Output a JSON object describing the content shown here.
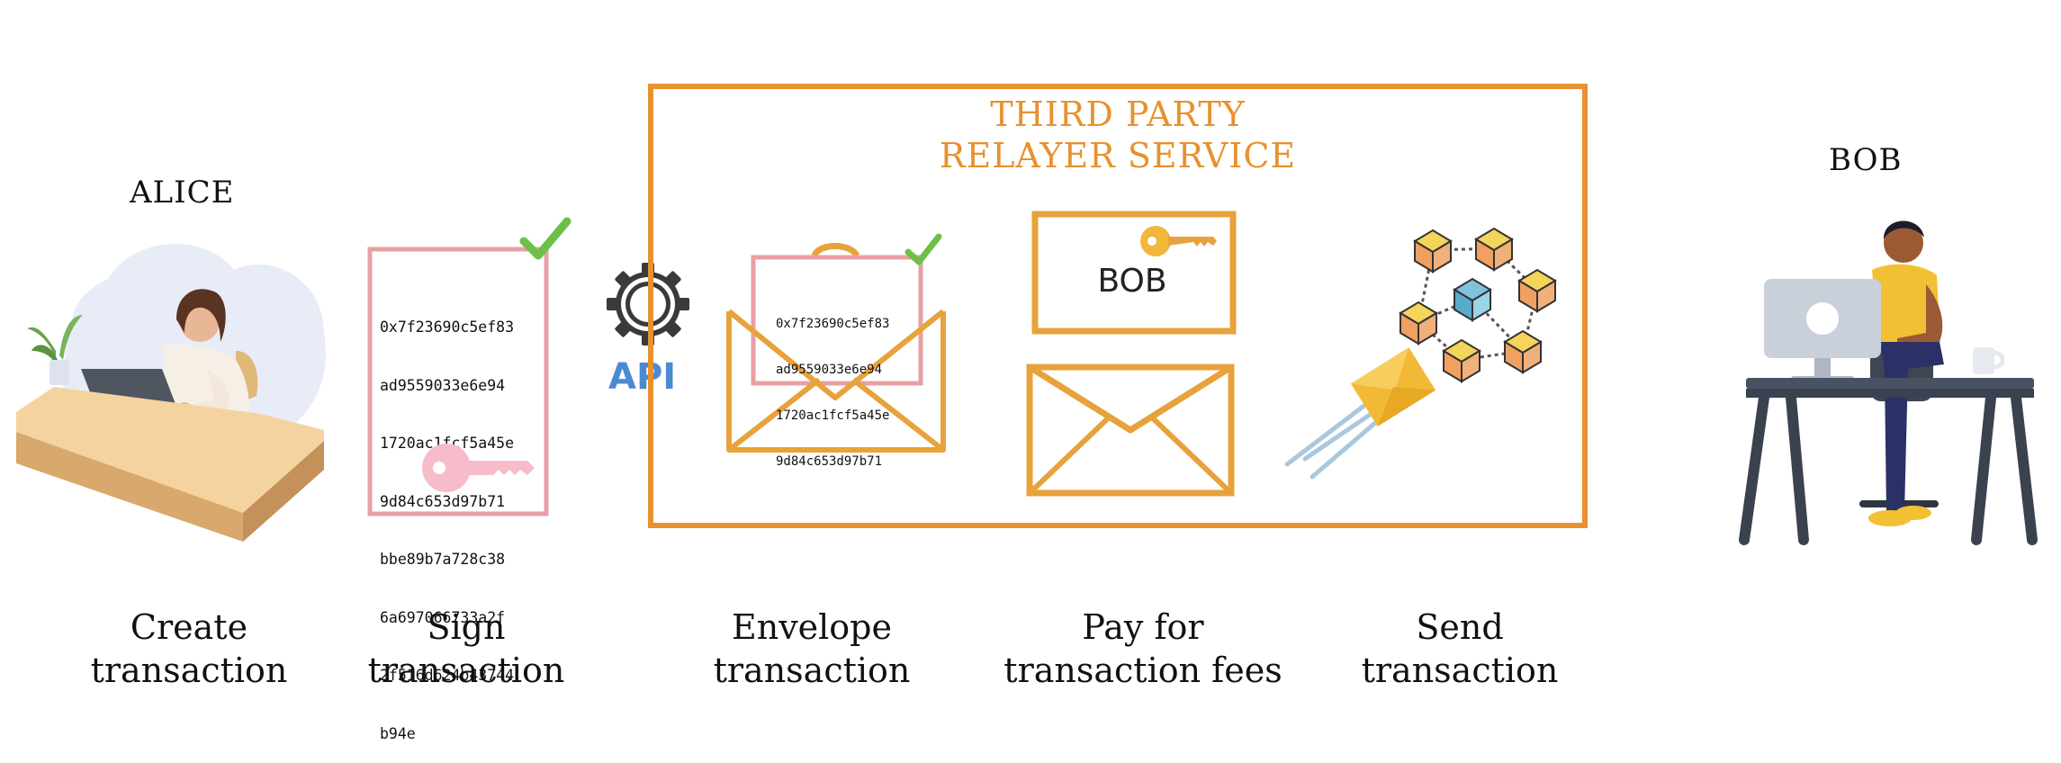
{
  "people": {
    "alice": "ALICE",
    "bob": "BOB"
  },
  "relayer": {
    "title_line1": "THIRD PARTY",
    "title_line2": "RELAYER SERVICE"
  },
  "transaction_hash_lines": [
    "0x7f23690c5ef83",
    "ad9559033e6e94",
    "1720ac1fcf5a45e",
    "9d84c653d97b71",
    "bbe89b7a728c38",
    "6a697066733a2f",
    "2f516d624b43744",
    "b94e"
  ],
  "envelope_hash_lines": [
    "0x7f23690c5ef83",
    "ad9559033e6e94",
    "1720ac1fcf5a45e",
    "9d84c653d97b71"
  ],
  "api_label": "API",
  "fee_card_label": "BOB",
  "steps": [
    {
      "line1": "Create",
      "line2": "transaction"
    },
    {
      "line1": "Sign",
      "line2": "transaction"
    },
    {
      "line1": "Envelope",
      "line2": "transaction"
    },
    {
      "line1": "Pay for",
      "line2": "transaction fees"
    },
    {
      "line1": "Send",
      "line2": "transaction"
    }
  ],
  "colors": {
    "relayer_orange": "#E8912E",
    "signed_pink": "#E9A0A4",
    "check_green": "#6CC04A",
    "api_blue": "#4A8BD0"
  }
}
